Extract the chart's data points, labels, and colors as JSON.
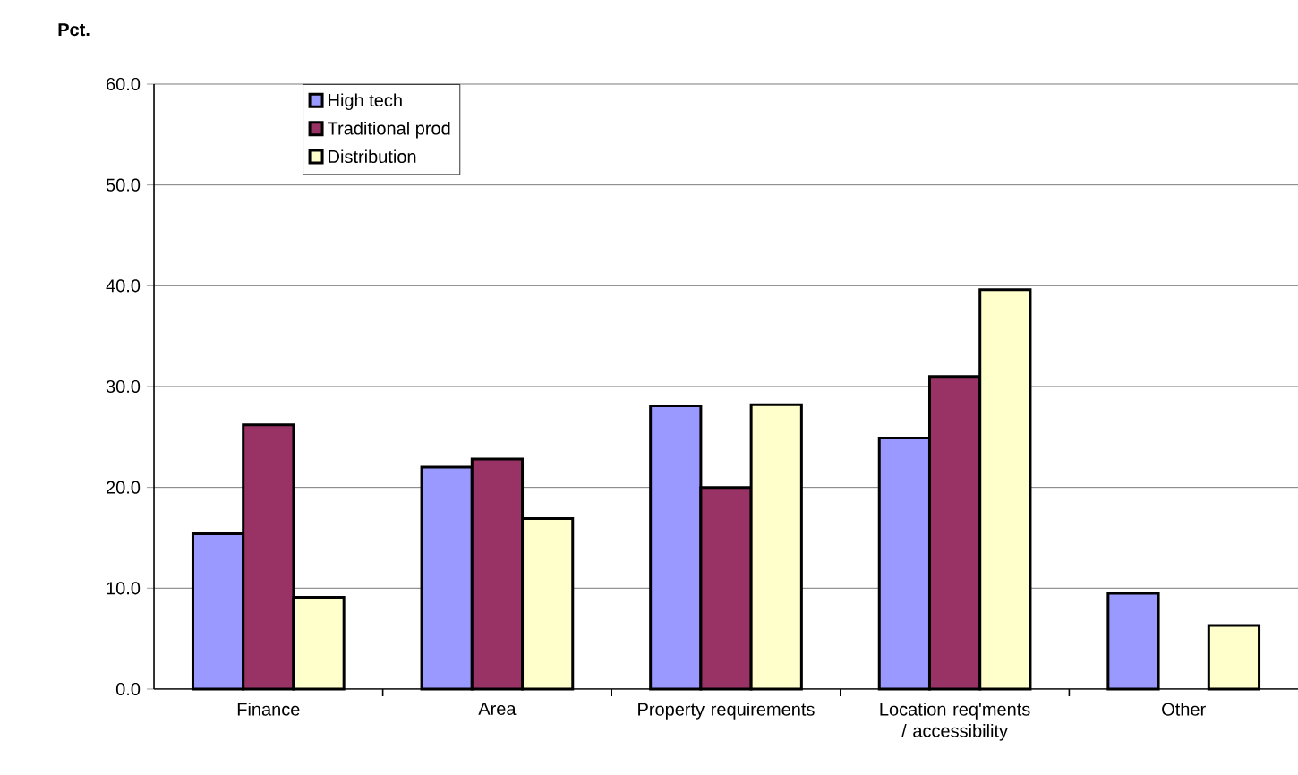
{
  "chart_data": {
    "type": "bar",
    "ylabel": "Pct.",
    "categories": [
      "Finance",
      "Area",
      "Property requirements",
      "Location req'ments / accessibility",
      "Other"
    ],
    "series": [
      {
        "name": "High tech",
        "color": "#9999ff",
        "values": [
          15.4,
          22.0,
          28.1,
          24.9,
          9.5
        ]
      },
      {
        "name": "Traditional prod",
        "color": "#993366",
        "values": [
          26.2,
          22.8,
          20.0,
          31.0,
          null
        ]
      },
      {
        "name": "Distribution",
        "color": "#ffffcc",
        "values": [
          9.1,
          16.9,
          28.2,
          39.6,
          6.3
        ]
      }
    ],
    "ylim": [
      0,
      60
    ],
    "yticks": [
      {
        "value": 0,
        "label": "0.0"
      },
      {
        "value": 10,
        "label": "10.0"
      },
      {
        "value": 20,
        "label": "20.0"
      },
      {
        "value": 30,
        "label": "30.0"
      },
      {
        "value": 40,
        "label": "40.0"
      },
      {
        "value": 50,
        "label": "50.0"
      },
      {
        "value": 60,
        "label": "60.0"
      }
    ],
    "grid": "y",
    "legend": "top left"
  }
}
